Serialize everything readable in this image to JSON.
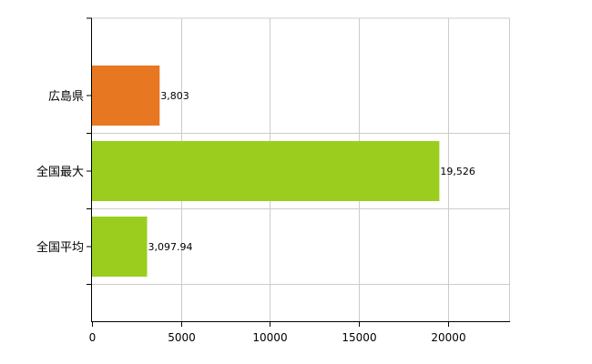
{
  "chart_data": {
    "type": "bar",
    "orientation": "horizontal",
    "categories": [
      "広島県",
      "全国最大",
      "全国平均"
    ],
    "values": [
      3803,
      19526,
      3097.94
    ],
    "data_labels": [
      "3,803",
      "19,526",
      "3,097.94"
    ],
    "bar_colors": [
      "#E87722",
      "#9ACD1E",
      "#9ACD1E"
    ],
    "xlim": [
      0,
      23500
    ],
    "x_ticks": [
      0,
      5000,
      10000,
      15000,
      20000
    ],
    "x_tick_labels": [
      "0",
      "5000",
      "10000",
      "15000",
      "20000"
    ],
    "grid": true,
    "grid_color": "#cccccc",
    "axis_color": "#000000"
  }
}
